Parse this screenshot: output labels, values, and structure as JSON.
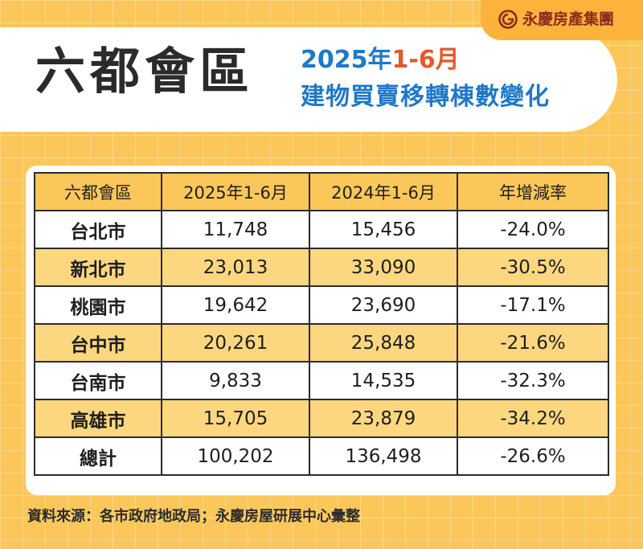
{
  "brand": {
    "name": "永慶房產集團",
    "logo_icon": "yungching-logo-icon",
    "color": "#8b2c1e"
  },
  "title": {
    "main": "六都會區",
    "subtitle_blue_1": "2025年",
    "subtitle_orange": "1-6月",
    "subtitle_2": "建物買賣移轉棟數變化"
  },
  "colors": {
    "background": "#fbc75a",
    "subtitle_blue": "#1f78c8",
    "subtitle_orange": "#e2592c",
    "row_highlight": "#fdd77f"
  },
  "chart_data": {
    "type": "table",
    "columns": [
      "六都會區",
      "2025年1-6月",
      "2024年1-6月",
      "年增減率"
    ],
    "rows": [
      {
        "city": "台北市",
        "y2025": "11,748",
        "y2024": "15,456",
        "change": "-24.0%"
      },
      {
        "city": "新北市",
        "y2025": "23,013",
        "y2024": "33,090",
        "change": "-30.5%"
      },
      {
        "city": "桃園市",
        "y2025": "19,642",
        "y2024": "23,690",
        "change": "-17.1%"
      },
      {
        "city": "台中市",
        "y2025": "20,261",
        "y2024": "25,848",
        "change": "-21.6%"
      },
      {
        "city": "台南市",
        "y2025": "9,833",
        "y2024": "14,535",
        "change": "-32.3%"
      },
      {
        "city": "高雄市",
        "y2025": "15,705",
        "y2024": "23,879",
        "change": "-34.2%"
      },
      {
        "city": "總計",
        "y2025": "100,202",
        "y2024": "136,498",
        "change": "-26.6%"
      }
    ]
  },
  "source": "資料來源：各市政府地政局；永慶房屋研展中心彙整"
}
